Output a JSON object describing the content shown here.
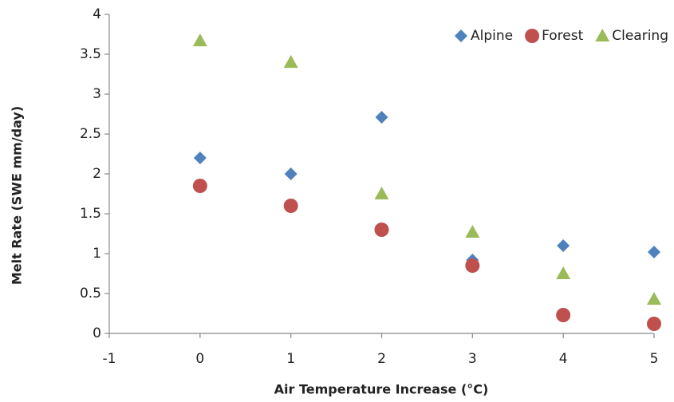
{
  "chart_data": {
    "type": "scatter",
    "xlabel": "Air Temperature Increase (°C)",
    "ylabel": "Melt Rate (SWE mm/day)",
    "xlim": [
      -1,
      5
    ],
    "xticks": [
      -1,
      0,
      1,
      2,
      3,
      4,
      5
    ],
    "ylim": [
      0,
      4
    ],
    "yticks": [
      0,
      0.5,
      1,
      1.5,
      2,
      2.5,
      3,
      3.5,
      4
    ],
    "grid": false,
    "legend": "top-right",
    "series": [
      {
        "name": "Alpine",
        "color": "#4f81bd",
        "marker": "diamond",
        "x": [
          0,
          1,
          2,
          3,
          4,
          5
        ],
        "values": [
          2.2,
          2.0,
          2.71,
          0.92,
          1.1,
          1.02
        ]
      },
      {
        "name": "Forest",
        "color": "#c0504d",
        "marker": "circle",
        "x": [
          0,
          1,
          2,
          3,
          4,
          5
        ],
        "values": [
          1.85,
          1.6,
          1.3,
          0.85,
          0.23,
          0.12
        ]
      },
      {
        "name": "Clearing",
        "color": "#9bbb59",
        "marker": "triangle",
        "x": [
          0,
          1,
          2,
          3,
          4,
          5
        ],
        "values": [
          3.67,
          3.4,
          1.75,
          1.27,
          0.75,
          0.43
        ]
      }
    ]
  }
}
